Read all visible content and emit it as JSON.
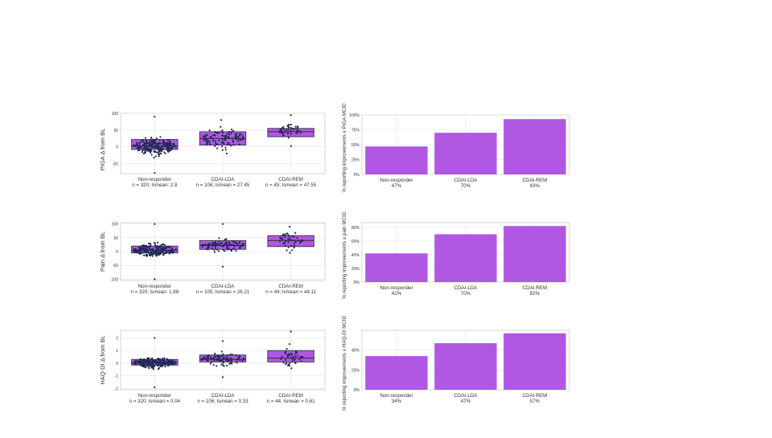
{
  "colors": {
    "box_fill": "#b057e3",
    "box_stroke": "#2b2b2b",
    "dot": "#1f2a55",
    "bar_fill": "#b057e3",
    "grid": "#e3e3e3",
    "panel_border": "#cccccc",
    "text": "#333333"
  },
  "chart_data": [
    {
      "type": "box",
      "ylabel": "PIGA  Δ  from BL",
      "categories": [
        "Non-responder",
        "CDAI-LDA",
        "CDAI-REM"
      ],
      "subtitles": [
        "n = 320; lsmean: 2.8",
        "n = 106; lsmean = 27.45",
        "n = 45; lsmean = 47.55"
      ],
      "ylim": [
        -80,
        100
      ],
      "yticks": [
        -50,
        0,
        50,
        100
      ],
      "ytick_labels": [
        "-50",
        "0",
        "50",
        "100"
      ],
      "boxes": [
        {
          "min": -78,
          "q1": -8,
          "median": 2,
          "q3": 22,
          "max": 90,
          "n": 320
        },
        {
          "min": -20,
          "q1": 5,
          "median": 25,
          "q3": 45,
          "max": 80,
          "n": 106
        },
        {
          "min": 2,
          "q1": 30,
          "median": 45,
          "q3": 55,
          "max": 95,
          "n": 45
        }
      ]
    },
    {
      "type": "box",
      "ylabel": "Pain  Δ  from BL",
      "categories": [
        "Non-responder",
        "CDAI-LDA",
        "CDAI-REM"
      ],
      "subtitles": [
        "n = 320; lsmean: 1.88",
        "n = 105; lsmean = 26.21",
        "n = 44; lsmean = 44.11"
      ],
      "ylim": [
        -105,
        105
      ],
      "yticks": [
        -100,
        -50,
        0,
        50,
        100
      ],
      "ytick_labels": [
        "-100",
        "-50",
        "0",
        "50",
        "100"
      ],
      "boxes": [
        {
          "min": -100,
          "q1": -5,
          "median": 5,
          "q3": 20,
          "max": 100,
          "n": 320
        },
        {
          "min": -55,
          "q1": 8,
          "median": 22,
          "q3": 40,
          "max": 100,
          "n": 105
        },
        {
          "min": -5,
          "q1": 18,
          "median": 40,
          "q3": 58,
          "max": 90,
          "n": 44
        }
      ]
    },
    {
      "type": "box",
      "ylabel": "HAQ-DI  Δ  from BL",
      "categories": [
        "Non-responder",
        "CDAI-LDA",
        "CDAI-REM"
      ],
      "subtitles": [
        "n = 320; lsmean = 0.04",
        "n = 106; lsmean = 0.33",
        "n = 44; lsmean = 0.61"
      ],
      "ylim": [
        -2.1,
        2.6
      ],
      "yticks": [
        -2,
        -1,
        0,
        1,
        2
      ],
      "ytick_labels": [
        "-2",
        "-1",
        "0",
        "1",
        "2"
      ],
      "boxes": [
        {
          "min": -1.9,
          "q1": -0.15,
          "median": 0.05,
          "q3": 0.3,
          "max": 2.0,
          "n": 320
        },
        {
          "min": -1.1,
          "q1": 0.1,
          "median": 0.3,
          "q3": 0.65,
          "max": 1.75,
          "n": 106
        },
        {
          "min": -0.4,
          "q1": 0.1,
          "median": 0.4,
          "q3": 1.0,
          "max": 2.5,
          "n": 44
        }
      ]
    },
    {
      "type": "bar",
      "ylabel": "% reporting improvements ≥ PIGA MCID",
      "categories": [
        "Non-responder",
        "CDAI-LDA",
        "CDAI-REM"
      ],
      "category_pcts": [
        "47%",
        "70%",
        "93%"
      ],
      "values": [
        47,
        70,
        93
      ],
      "ylim": [
        0,
        100
      ],
      "yticks": [
        0,
        25,
        50,
        75,
        100
      ],
      "ytick_labels": [
        "0%",
        "25%",
        "50%",
        "75%",
        "100%"
      ]
    },
    {
      "type": "bar",
      "ylabel": "% reporting improvements ≥ pain MCID",
      "categories": [
        "Non-responder",
        "CDAI-LDA",
        "CDAI-REM"
      ],
      "category_pcts": [
        "42%",
        "70%",
        "82%"
      ],
      "values": [
        42,
        70,
        82
      ],
      "ylim": [
        0,
        87
      ],
      "yticks": [
        0,
        20,
        40,
        60,
        80
      ],
      "ytick_labels": [
        "0%",
        "20%",
        "40%",
        "60%",
        "80%"
      ]
    },
    {
      "type": "bar",
      "ylabel": "% reporting improvements ≥ HAQ-DI MCID",
      "categories": [
        "Non-responder",
        "CDAI-LDA",
        "CDAI-REM"
      ],
      "category_pcts": [
        "34%",
        "47%",
        "57%"
      ],
      "values": [
        34,
        47,
        57
      ],
      "ylim": [
        0,
        60
      ],
      "yticks": [
        0,
        20,
        40
      ],
      "ytick_labels": [
        "0%",
        "20%",
        "40%"
      ]
    }
  ]
}
